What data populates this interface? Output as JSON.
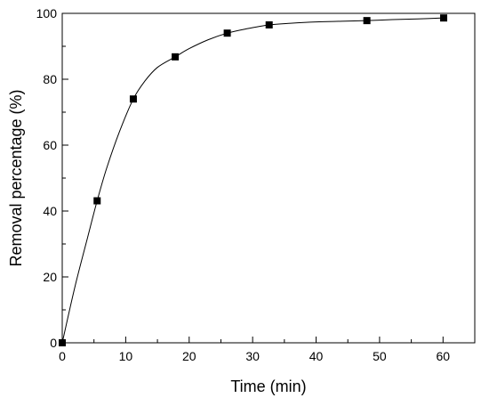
{
  "chart_data": {
    "type": "scatter",
    "title": "",
    "xlabel": "Time (min)",
    "ylabel": "Removal percentage (%)",
    "xlim": [
      0,
      65
    ],
    "ylim": [
      0,
      100
    ],
    "xticks": [
      0,
      10,
      20,
      30,
      40,
      50,
      60
    ],
    "yticks": [
      0,
      20,
      40,
      60,
      80,
      100
    ],
    "grid": false,
    "series": [
      {
        "marker": "square",
        "color": "#000000",
        "x": [
          0,
          5.5,
          11.2,
          17.8,
          26,
          32.6,
          48,
          60.1
        ],
        "y": [
          0,
          43.1,
          74,
          86.8,
          94,
          96.5,
          97.8,
          98.6
        ]
      }
    ],
    "fit_curve": {
      "color": "#000000",
      "x": [
        0,
        2,
        4,
        5.5,
        7,
        9,
        11.2,
        13,
        15,
        17.8,
        20,
        23,
        26,
        29,
        32.6,
        36,
        40,
        44,
        48,
        52,
        56,
        60.1
      ],
      "y": [
        0,
        17,
        32,
        43.1,
        53,
        64,
        74,
        79.4,
        83.6,
        86.8,
        89.3,
        92,
        94,
        95.3,
        96.5,
        97.0,
        97.4,
        97.6,
        97.8,
        98.1,
        98.3,
        98.6
      ]
    }
  }
}
